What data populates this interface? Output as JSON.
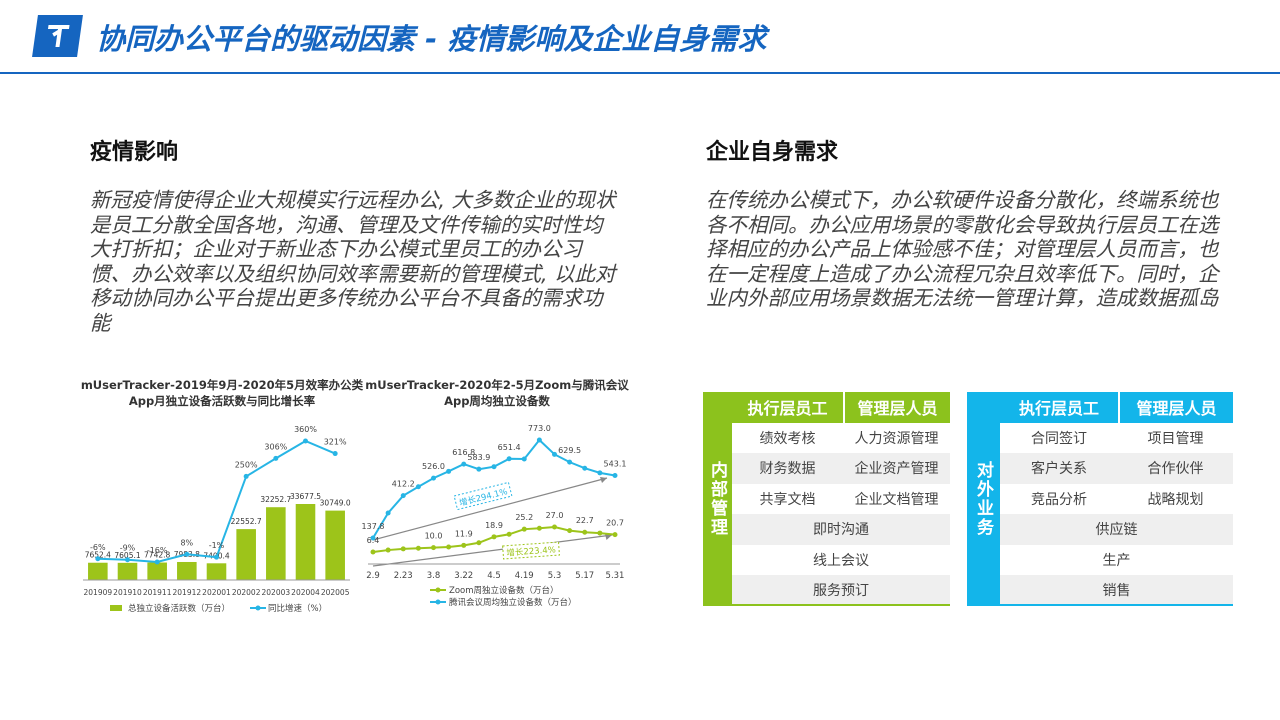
{
  "header": {
    "title": "协同办公平台的驱动因素 - 疫情影响及企业自身需求"
  },
  "sections": [
    {
      "title": "疫情影响",
      "text": "新冠疫情使得企业大规模实行远程办公, 大多数企业的现状是员工分散全国各地，沟通、管理及文件传输的实时性均大打折扣；企业对于新业态下办公模式里员工的办公习惯、办公效率以及组织协同效率需要新的管理模式, 以此对移动协同办公平台提出更多传统办公平台不具备的需求功能"
    },
    {
      "title": "企业自身需求",
      "text": "在传统办公模式下，办公软硬件设备分散化，终端系统也各不相同。办公应用场景的零散化会导致执行层员工在选择相应的办公产品上体验感不佳；对管理层人员而言，也在一定程度上造成了办公流程冗杂且效率低下。同时，企业内外部应用场景数据无法统一管理计算，造成数据孤岛"
    }
  ],
  "chart_data": [
    {
      "type": "bar",
      "title": [
        "mUserTracker-2019年9月-2020年5月效率办公类",
        "App月独立设备活跃数与同比增长率"
      ],
      "categories": [
        "201909",
        "201910",
        "201911",
        "201912",
        "202001",
        "202002",
        "202003",
        "202004",
        "202005"
      ],
      "series": [
        {
          "name": "总独立设备活跃数（万台）",
          "color": "#9dc41a",
          "values": [
            7652.4,
            7605.1,
            7742.8,
            7983.8,
            7400.4,
            22552.7,
            32252.7,
            33677.5,
            30749.0
          ],
          "value_labels": [
            "7652.4",
            "7605.1",
            "7742.8",
            "7983.8",
            "7400.4",
            "22552.7",
            "32252.7",
            "33677.5",
            "30749.0"
          ]
        },
        {
          "name": "同比增速（%）",
          "color": "#27b5e5",
          "axis": "y2",
          "values": [
            -6,
            -9,
            -16,
            8,
            -1,
            250,
            306,
            360,
            321
          ],
          "value_labels": [
            "-6%",
            "-9%",
            "-16%",
            "8%",
            "-1%",
            "250%",
            "306%",
            "360%",
            "321%"
          ]
        }
      ]
    },
    {
      "type": "line",
      "title": [
        "mUserTracker-2020年2-5月Zoom与腾讯会议",
        "App周均独立设备数"
      ],
      "categories": [
        "2.9",
        null,
        "2.23",
        null,
        "3.8",
        null,
        "3.22",
        null,
        "4.5",
        null,
        "4.19",
        null,
        "5.3",
        null,
        "5.17",
        null,
        "5.31"
      ],
      "series": [
        {
          "name": "Zoom周独立设备数（万台）",
          "color": "#9dc41a",
          "axis": "y2",
          "values": [
            6.4,
            8,
            9,
            9.5,
            10.0,
            10.5,
            11.9,
            14,
            18.9,
            21,
            25.2,
            26,
            27.0,
            24,
            22.7,
            22,
            20.7
          ],
          "value_labels": [
            "6.4",
            null,
            null,
            null,
            "10.0",
            null,
            "11.9",
            null,
            "18.9",
            null,
            "25.2",
            null,
            "27.0",
            null,
            "22.7",
            null,
            "20.7"
          ]
        },
        {
          "name": "腾讯会议周均独立设备数（万台）",
          "color": "#27b5e5",
          "values": [
            137.8,
            300,
            412.2,
            470,
            526.0,
            570,
            616.8,
            583.9,
            600,
            651.4,
            650,
            773.0,
            680,
            629.5,
            590,
            560,
            543.1
          ],
          "value_labels": [
            "137.8",
            null,
            "412.2",
            null,
            "526.0",
            null,
            "616.8",
            "583.9",
            null,
            "651.4",
            null,
            "773.0",
            null,
            "629.5",
            null,
            null,
            "543.1"
          ]
        }
      ],
      "annotations": [
        "增长294.1%",
        "增长223.4%"
      ]
    }
  ],
  "tables": [
    {
      "side": "内部管理",
      "header": [
        "执行层员工",
        "管理层人员"
      ],
      "rows": [
        [
          "绩效考核",
          "人力资源管理"
        ],
        [
          "财务数据",
          "企业资产管理"
        ],
        [
          "共享文档",
          "企业文档管理"
        ]
      ],
      "full_rows": [
        "即时沟通",
        "线上会议",
        "服务预订"
      ]
    },
    {
      "side": "对外业务",
      "header": [
        "执行层员工",
        "管理层人员"
      ],
      "rows": [
        [
          "合同签订",
          "项目管理"
        ],
        [
          "客户关系",
          "合作伙伴"
        ],
        [
          "竞品分析",
          "战略规划"
        ]
      ],
      "full_rows": [
        "供应链",
        "生产",
        "销售"
      ]
    }
  ]
}
